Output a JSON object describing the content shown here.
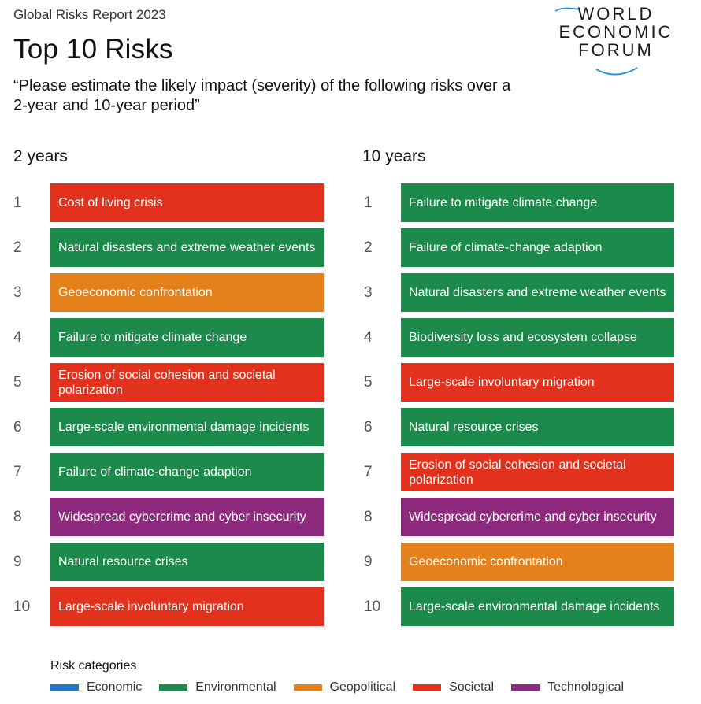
{
  "report_label": "Global Risks Report 2023",
  "title": "Top 10 Risks",
  "question": "“Please estimate the likely impact (severity) of the following risks over a 2-year and 10-year period”",
  "logo": {
    "lines": [
      "WORLD",
      "ECONOMIC",
      "FORUM"
    ]
  },
  "colors": {
    "Economic": "#1f78c8",
    "Environmental": "#1c8a4a",
    "Geopolitical": "#e5811a",
    "Societal": "#e2311d",
    "Technological": "#8e2a7e"
  },
  "chart_data": {
    "type": "table",
    "columns": [
      {
        "heading": "2 years",
        "rows": [
          {
            "rank": "1",
            "label": "Cost of living crisis",
            "category": "Societal"
          },
          {
            "rank": "2",
            "label": "Natural disasters and extreme weather events",
            "category": "Environmental"
          },
          {
            "rank": "3",
            "label": "Geoeconomic confrontation",
            "category": "Geopolitical"
          },
          {
            "rank": "4",
            "label": "Failure to mitigate climate change",
            "category": "Environmental"
          },
          {
            "rank": "5",
            "label": "Erosion of social cohesion and societal polarization",
            "category": "Societal"
          },
          {
            "rank": "6",
            "label": "Large-scale environmental damage incidents",
            "category": "Environmental"
          },
          {
            "rank": "7",
            "label": "Failure of climate-change adaption",
            "category": "Environmental"
          },
          {
            "rank": "8",
            "label": "Widespread cybercrime and cyber insecurity",
            "category": "Technological"
          },
          {
            "rank": "9",
            "label": "Natural resource crises",
            "category": "Environmental"
          },
          {
            "rank": "10",
            "label": "Large-scale involuntary migration",
            "category": "Societal"
          }
        ]
      },
      {
        "heading": "10 years",
        "rows": [
          {
            "rank": "1",
            "label": "Failure to mitigate climate change",
            "category": "Environmental"
          },
          {
            "rank": "2",
            "label": "Failure of climate-change adaption",
            "category": "Environmental"
          },
          {
            "rank": "3",
            "label": "Natural disasters and extreme weather events",
            "category": "Environmental"
          },
          {
            "rank": "4",
            "label": "Biodiversity loss and ecosystem collapse",
            "category": "Environmental"
          },
          {
            "rank": "5",
            "label": "Large-scale involuntary migration",
            "category": "Societal"
          },
          {
            "rank": "6",
            "label": "Natural resource crises",
            "category": "Environmental"
          },
          {
            "rank": "7",
            "label": "Erosion of social cohesion and societal polarization",
            "category": "Societal"
          },
          {
            "rank": "8",
            "label": "Widespread cybercrime and cyber insecurity",
            "category": "Technological"
          },
          {
            "rank": "9",
            "label": "Geoeconomic confrontation",
            "category": "Geopolitical"
          },
          {
            "rank": "10",
            "label": "Large-scale environmental damage incidents",
            "category": "Environmental"
          }
        ]
      }
    ],
    "legend": {
      "title": "Risk categories",
      "items": [
        "Economic",
        "Environmental",
        "Geopolitical",
        "Societal",
        "Technological"
      ]
    }
  }
}
